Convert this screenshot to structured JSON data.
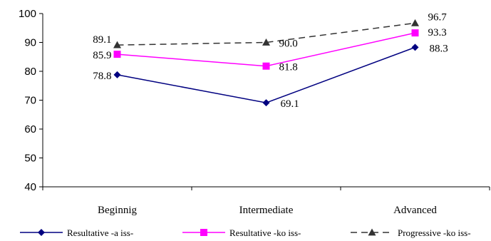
{
  "chart_data": {
    "type": "line",
    "categories": [
      "Beginnig",
      "Intermediate",
      "Advanced"
    ],
    "ylim": [
      40,
      100
    ],
    "yticks": [
      40,
      50,
      60,
      70,
      80,
      90,
      100
    ],
    "grid": false,
    "legend_position": "bottom",
    "series": [
      {
        "name": "Resultative -a iss-",
        "values": [
          78.8,
          69.1,
          88.3
        ],
        "labels": [
          "78.8",
          "69.1",
          "88.3"
        ],
        "color": "#000080",
        "marker": "diamond",
        "dash": "solid"
      },
      {
        "name": "Resultative -ko iss-",
        "values": [
          85.9,
          81.8,
          93.3
        ],
        "labels": [
          "85.9",
          "81.8",
          "93.3"
        ],
        "color": "#ff00ff",
        "marker": "square",
        "dash": "solid"
      },
      {
        "name": "Progressive -ko iss-",
        "values": [
          89.1,
          90.0,
          96.7
        ],
        "labels": [
          "89.1",
          "90.0",
          "96.7"
        ],
        "color": "#333333",
        "marker": "triangle",
        "dash": "dashed"
      }
    ]
  }
}
